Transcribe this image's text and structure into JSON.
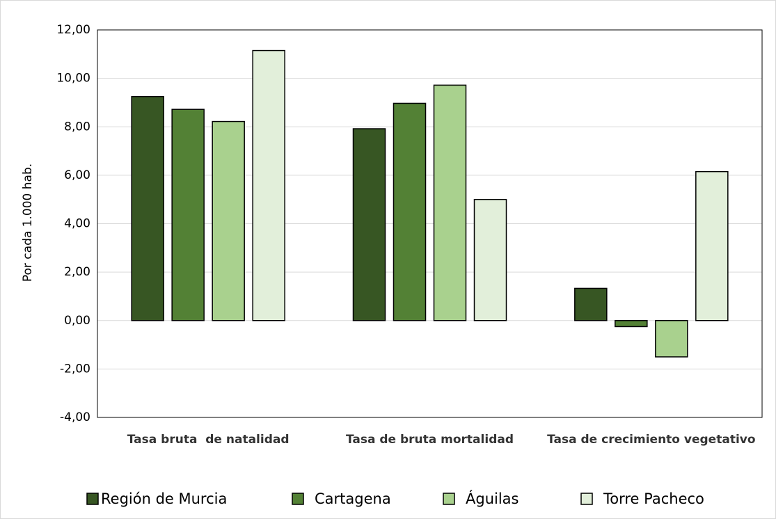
{
  "chart_data": {
    "type": "bar",
    "ylabel": "Por cada 1.000 hab.",
    "categories": [
      "Tasa bruta  de natalidad",
      "Tasa de bruta mortalidad",
      "Tasa de crecimiento vegetativo"
    ],
    "series": [
      {
        "name": "Región de Murcia",
        "color": "#375623",
        "values": [
          9.25,
          7.92,
          1.33
        ]
      },
      {
        "name": "Cartagena",
        "color": "#538135",
        "values": [
          8.72,
          8.97,
          -0.25
        ]
      },
      {
        "name": "Águilas",
        "color": "#a9d18e",
        "values": [
          8.22,
          9.72,
          -1.5
        ]
      },
      {
        "name": "Torre Pacheco",
        "color": "#e2efda",
        "values": [
          11.15,
          5.0,
          6.15
        ]
      }
    ],
    "ylim": [
      -4,
      12
    ],
    "yticks": [
      {
        "value": -4,
        "label": "-4,00"
      },
      {
        "value": -2,
        "label": "-2,00"
      },
      {
        "value": 0,
        "label": "0,00"
      },
      {
        "value": 2,
        "label": "2,00"
      },
      {
        "value": 4,
        "label": "4,00"
      },
      {
        "value": 6,
        "label": "6,00"
      },
      {
        "value": 8,
        "label": "8,00"
      },
      {
        "value": 10,
        "label": "10,00"
      },
      {
        "value": 12,
        "label": "12,00"
      }
    ],
    "grid": true,
    "legend": "bottom"
  }
}
